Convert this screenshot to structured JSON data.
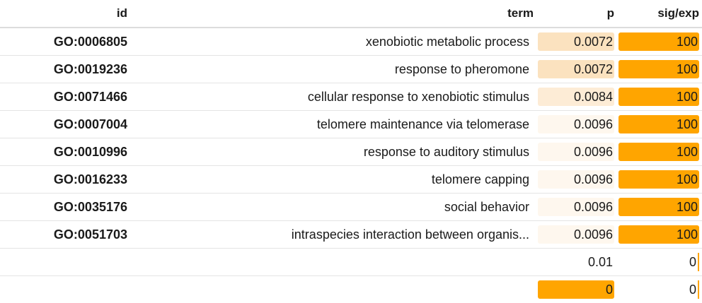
{
  "headers": {
    "id": "id",
    "term": "term",
    "p": "p",
    "sig_exp": "sig/exp"
  },
  "colors": {
    "accent": "#ffa500",
    "p_max": "#f9d9a6",
    "p_mid": "#fbe6c6",
    "p_light": "#fdf4e8"
  },
  "rows": [
    {
      "id": "GO:0006805",
      "term": "xenobiotic metabolic process",
      "p": "0.0072",
      "p_tint": "#fbe2bf",
      "sig": "100",
      "sig_fill": 1.0
    },
    {
      "id": "GO:0019236",
      "term": "response to pheromone",
      "p": "0.0072",
      "p_tint": "#fbe2bf",
      "sig": "100",
      "sig_fill": 1.0
    },
    {
      "id": "GO:0071466",
      "term": "cellular response to xenobiotic stimulus",
      "p": "0.0084",
      "p_tint": "#fdecd6",
      "sig": "100",
      "sig_fill": 1.0
    },
    {
      "id": "GO:0007004",
      "term": "telomere maintenance via telomerase",
      "p": "0.0096",
      "p_tint": "#fef7ee",
      "sig": "100",
      "sig_fill": 1.0
    },
    {
      "id": "GO:0010996",
      "term": "response to auditory stimulus",
      "p": "0.0096",
      "p_tint": "#fef7ee",
      "sig": "100",
      "sig_fill": 1.0
    },
    {
      "id": "GO:0016233",
      "term": "telomere capping",
      "p": "0.0096",
      "p_tint": "#fef7ee",
      "sig": "100",
      "sig_fill": 1.0
    },
    {
      "id": "GO:0035176",
      "term": "social behavior",
      "p": "0.0096",
      "p_tint": "#fef7ee",
      "sig": "100",
      "sig_fill": 1.0
    },
    {
      "id": "GO:0051703",
      "term": "intraspecies interaction between organis...",
      "p": "0.0096",
      "p_tint": "#fef7ee",
      "sig": "100",
      "sig_fill": 1.0
    },
    {
      "id": "",
      "term": "",
      "p": "0.01",
      "p_tint": "",
      "sig": "0",
      "sig_fill": 0.0
    },
    {
      "id": "",
      "term": "",
      "p": "0",
      "p_tint": "#ffa500",
      "sig": "0",
      "sig_fill": 0.0
    }
  ]
}
